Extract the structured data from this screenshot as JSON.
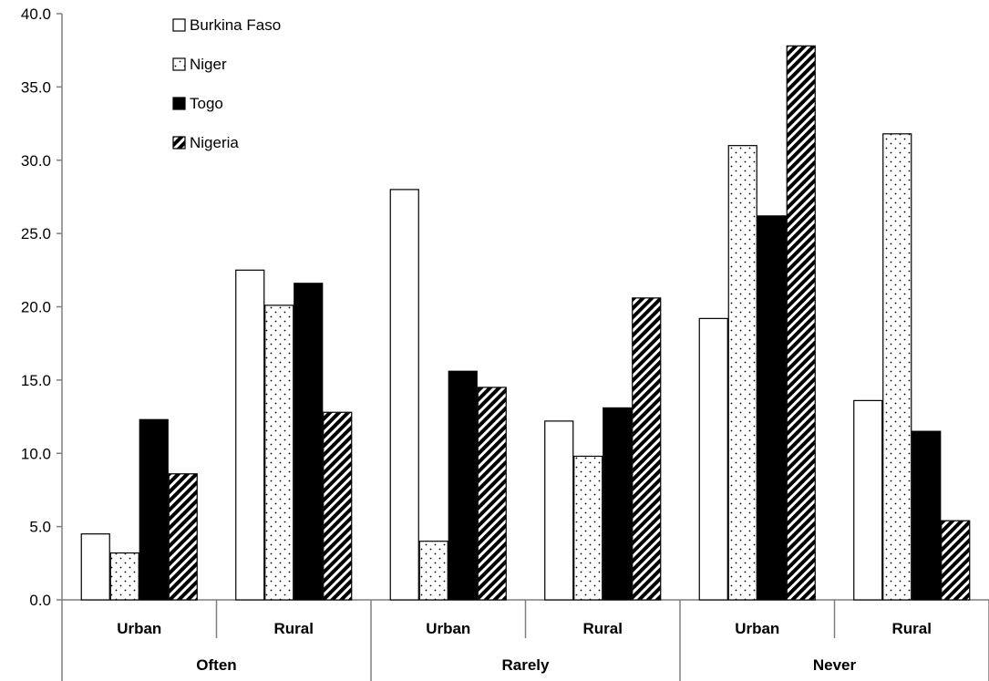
{
  "chart_data": {
    "type": "bar",
    "title": "",
    "xlabel": "",
    "ylabel": "",
    "ylim": [
      0,
      40
    ],
    "yticks": [
      "0.0",
      "5.0",
      "10.0",
      "15.0",
      "20.0",
      "25.0",
      "30.0",
      "35.0",
      "40.0"
    ],
    "grid": false,
    "legend_position": "top-left",
    "groups": [
      {
        "label": "Often",
        "subcategories": [
          "Urban",
          "Rural"
        ]
      },
      {
        "label": "Rarely",
        "subcategories": [
          "Urban",
          "Rural"
        ]
      },
      {
        "label": "Never",
        "subcategories": [
          "Urban",
          "Rural"
        ]
      }
    ],
    "categories": [
      "Often - Urban",
      "Often - Rural",
      "Rarely - Urban",
      "Rarely - Rural",
      "Never - Urban",
      "Never - Rural"
    ],
    "series": [
      {
        "name": "Burkina Faso",
        "pattern": "white",
        "values": [
          4.5,
          22.5,
          28.0,
          12.2,
          19.2,
          13.6
        ]
      },
      {
        "name": "Niger",
        "pattern": "dotted",
        "values": [
          3.2,
          20.1,
          4.0,
          9.8,
          31.0,
          31.8
        ]
      },
      {
        "name": "Togo",
        "pattern": "black",
        "values": [
          12.3,
          21.6,
          15.6,
          13.1,
          26.2,
          11.5
        ]
      },
      {
        "name": "Nigeria",
        "pattern": "diagonal-hatch",
        "values": [
          8.6,
          12.8,
          14.5,
          20.6,
          37.8,
          5.4
        ]
      }
    ]
  },
  "colors": {
    "axis": "#7f7f7f",
    "bar_outline": "#000000",
    "black_fill": "#000000"
  }
}
